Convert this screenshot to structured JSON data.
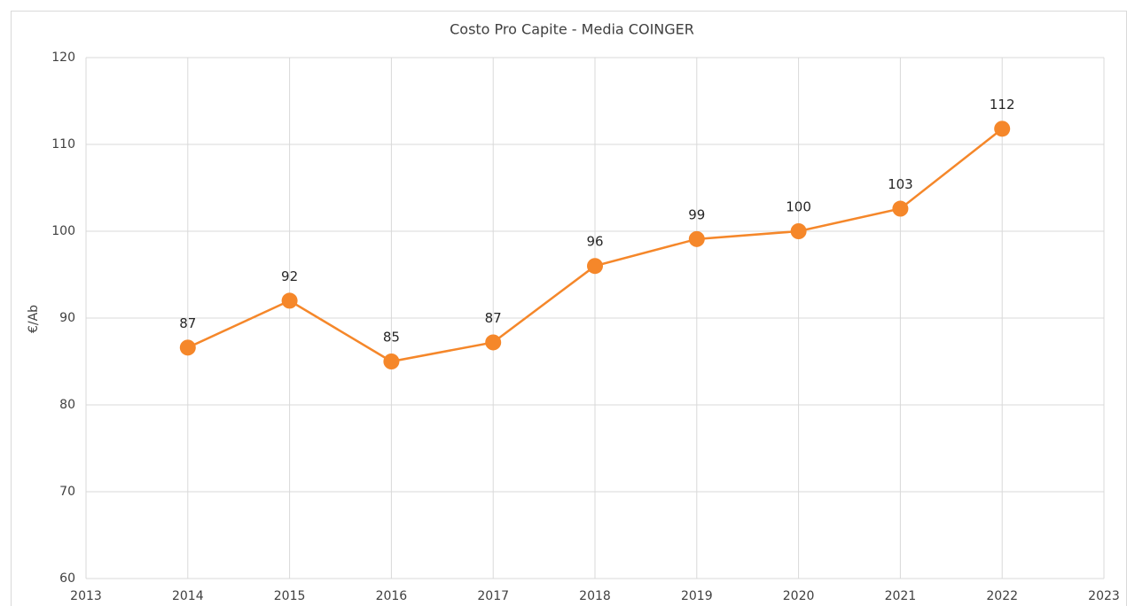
{
  "chart_data": {
    "type": "line",
    "title": "Costo Pro Capite - Media COINGER",
    "y_label": "€/Ab",
    "x": [
      2014,
      2015,
      2016,
      2017,
      2018,
      2019,
      2020,
      2021,
      2022
    ],
    "series": [
      {
        "name": "Costo Pro Capite",
        "color": "#f5872a",
        "values": [
          86.6,
          92,
          85,
          87.2,
          96,
          99.1,
          100,
          102.6,
          111.8
        ],
        "value_labels": [
          "87",
          "92",
          "85",
          "87",
          "96",
          "99",
          "100",
          "103",
          "112"
        ]
      }
    ],
    "xlim": [
      2013,
      2023
    ],
    "xticks": [
      2013,
      2014,
      2015,
      2016,
      2017,
      2018,
      2019,
      2020,
      2021,
      2022,
      2023
    ],
    "ylim": [
      60,
      120
    ],
    "yticks": [
      60,
      70,
      80,
      90,
      100,
      110,
      120
    ],
    "grid": true
  }
}
